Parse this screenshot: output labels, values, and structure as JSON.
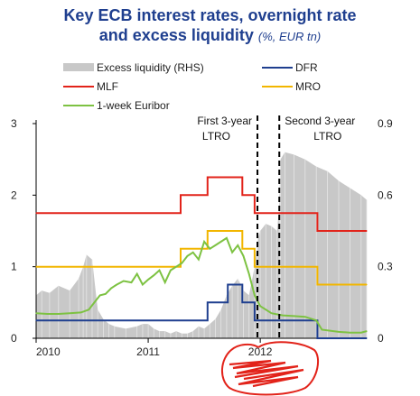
{
  "chart_data": {
    "type": "line",
    "title_line_1": "Key ECB interest rates, overnight rate",
    "title_line_2": "and excess liquidity",
    "title_unit": "(%, EUR tn)",
    "x_ticks": [
      "2010",
      "2011",
      "2012"
    ],
    "y_left_ticks": [
      "0",
      "1",
      "2",
      "3"
    ],
    "y_right_ticks": [
      "0",
      "0.3",
      "0.6",
      "0.9"
    ],
    "ylim_left": [
      0,
      3
    ],
    "ylim_right": [
      0,
      0.9
    ],
    "xlim": [
      2010.0,
      2012.95
    ],
    "legend_placement": "top, two columns",
    "annotations": [
      {
        "text_1": "First 3-year",
        "text_2": "LTRO",
        "x": 2011.975
      },
      {
        "text_1": "Second 3-year",
        "text_2": "LTRO",
        "x": 2012.17
      }
    ],
    "series": [
      {
        "name": "Excess liquidity (RHS)",
        "type": "area",
        "axis": "right",
        "color": "#c8c8c8",
        "x": [
          2010.0,
          2010.05,
          2010.12,
          2010.2,
          2010.3,
          2010.38,
          2010.42,
          2010.45,
          2010.5,
          2010.55,
          2010.6,
          2010.65,
          2010.7,
          2010.8,
          2010.9,
          2010.95,
          2011.0,
          2011.05,
          2011.1,
          2011.15,
          2011.2,
          2011.25,
          2011.3,
          2011.35,
          2011.4,
          2011.45,
          2011.5,
          2011.55,
          2011.6,
          2011.65,
          2011.7,
          2011.75,
          2011.8,
          2011.85,
          2011.9,
          2011.95,
          2011.97,
          2011.98,
          2012.0,
          2012.05,
          2012.1,
          2012.15,
          2012.17,
          2012.18,
          2012.22,
          2012.3,
          2012.4,
          2012.5,
          2012.6,
          2012.7,
          2012.8,
          2012.9,
          2012.95
        ],
        "values": [
          0.18,
          0.2,
          0.19,
          0.22,
          0.2,
          0.25,
          0.3,
          0.35,
          0.33,
          0.12,
          0.08,
          0.06,
          0.05,
          0.04,
          0.05,
          0.06,
          0.06,
          0.04,
          0.03,
          0.03,
          0.02,
          0.03,
          0.02,
          0.02,
          0.03,
          0.05,
          0.04,
          0.06,
          0.08,
          0.12,
          0.18,
          0.22,
          0.25,
          0.2,
          0.18,
          0.3,
          0.38,
          0.42,
          0.45,
          0.48,
          0.47,
          0.45,
          0.55,
          0.75,
          0.78,
          0.77,
          0.75,
          0.72,
          0.7,
          0.66,
          0.63,
          0.6,
          0.58
        ]
      },
      {
        "name": "DFR",
        "type": "step",
        "axis": "left",
        "color": "#1f3f8f",
        "x": [
          2010.0,
          2011.53,
          2011.71,
          2011.84,
          2011.95,
          2012.51,
          2012.95
        ],
        "values": [
          0.25,
          0.5,
          0.75,
          0.5,
          0.25,
          0.0,
          0.0
        ]
      },
      {
        "name": "MLF",
        "type": "step",
        "axis": "left",
        "color": "#e2231a",
        "x": [
          2010.0,
          2011.29,
          2011.53,
          2011.84,
          2011.95,
          2012.51,
          2012.95
        ],
        "values": [
          1.75,
          2.0,
          2.25,
          2.0,
          1.75,
          1.5,
          1.5
        ]
      },
      {
        "name": "MRO",
        "type": "step",
        "axis": "left",
        "color": "#f2b600",
        "x": [
          2010.0,
          2011.29,
          2011.53,
          2011.84,
          2011.95,
          2012.51,
          2012.95
        ],
        "values": [
          1.0,
          1.25,
          1.5,
          1.25,
          1.0,
          0.75,
          0.75
        ]
      },
      {
        "name": "1-week Euribor",
        "type": "line",
        "axis": "left",
        "color": "#7dc242",
        "x": [
          2010.0,
          2010.1,
          2010.2,
          2010.3,
          2010.4,
          2010.47,
          2010.52,
          2010.57,
          2010.62,
          2010.67,
          2010.72,
          2010.78,
          2010.85,
          2010.9,
          2010.95,
          2011.0,
          2011.05,
          2011.1,
          2011.15,
          2011.2,
          2011.25,
          2011.3,
          2011.35,
          2011.4,
          2011.45,
          2011.5,
          2011.55,
          2011.6,
          2011.65,
          2011.7,
          2011.75,
          2011.8,
          2011.85,
          2011.9,
          2011.95,
          2012.0,
          2012.1,
          2012.2,
          2012.3,
          2012.4,
          2012.5,
          2012.55,
          2012.7,
          2012.8,
          2012.9,
          2012.95
        ],
        "values": [
          0.35,
          0.34,
          0.34,
          0.35,
          0.36,
          0.4,
          0.5,
          0.6,
          0.62,
          0.7,
          0.75,
          0.8,
          0.78,
          0.9,
          0.75,
          0.82,
          0.88,
          0.95,
          0.78,
          0.95,
          1.0,
          1.05,
          1.15,
          1.2,
          1.1,
          1.35,
          1.25,
          1.3,
          1.35,
          1.4,
          1.2,
          1.3,
          1.15,
          0.9,
          0.6,
          0.45,
          0.35,
          0.32,
          0.31,
          0.3,
          0.25,
          0.12,
          0.09,
          0.08,
          0.08,
          0.1
        ]
      }
    ]
  }
}
